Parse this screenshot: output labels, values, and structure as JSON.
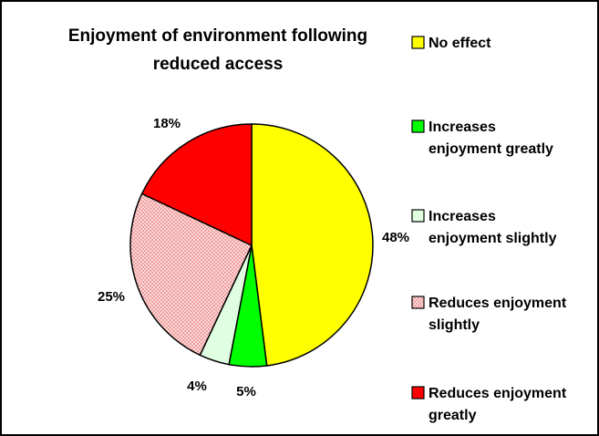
{
  "chart_data": {
    "type": "pie",
    "title_lines": [
      "Enjoyment of environment following",
      "reduced access"
    ],
    "slices": [
      {
        "label": "No effect",
        "value": 48,
        "value_label": "48%",
        "color": "#ffff00",
        "pattern": "none"
      },
      {
        "label": "Increases enjoyment greatly",
        "value": 5,
        "value_label": "5%",
        "color": "#00ff00",
        "pattern": "none"
      },
      {
        "label": "Increases enjoyment slightly",
        "value": 4,
        "value_label": "4%",
        "color": "#e0ffe0",
        "pattern": "none"
      },
      {
        "label": "Reduces enjoyment slightly",
        "value": 25,
        "value_label": "25%",
        "color": "#ffd8d8",
        "pattern": "dots"
      },
      {
        "label": "Reduces enjoyment greatly",
        "value": 18,
        "value_label": "18%",
        "color": "#ff0000",
        "pattern": "none"
      }
    ],
    "legend": {
      "position": "right",
      "entries": [
        {
          "lines": [
            "No effect"
          ]
        },
        {
          "lines": [
            "Increases",
            "enjoyment greatly"
          ]
        },
        {
          "lines": [
            "Increases",
            "enjoyment slightly"
          ]
        },
        {
          "lines": [
            "Reduces enjoyment",
            "slightly"
          ]
        },
        {
          "lines": [
            "Reduces enjoyment",
            "greatly"
          ]
        }
      ]
    },
    "start_angle": "12 o'clock",
    "direction": "clockwise",
    "border_color": "#000000"
  }
}
